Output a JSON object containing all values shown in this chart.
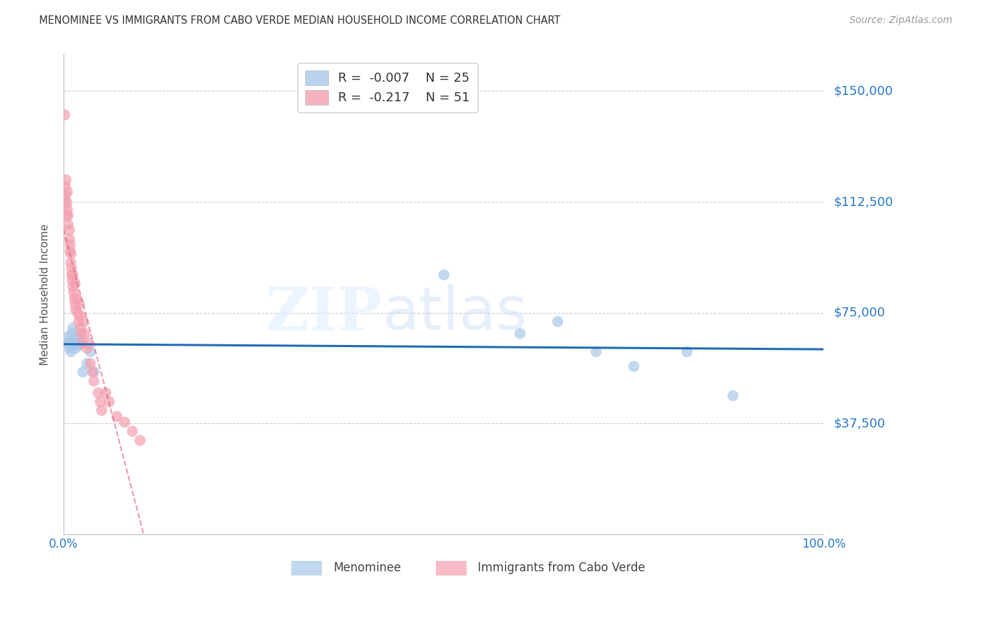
{
  "title": "MENOMINEE VS IMMIGRANTS FROM CABO VERDE MEDIAN HOUSEHOLD INCOME CORRELATION CHART",
  "source": "Source: ZipAtlas.com",
  "ylabel": "Median Household Income",
  "yticks": [
    0,
    37500,
    75000,
    112500,
    150000
  ],
  "ytick_labels": [
    "",
    "$37,500",
    "$75,000",
    "$112,500",
    "$150,000"
  ],
  "xlim": [
    0.0,
    1.0
  ],
  "ylim": [
    0,
    162500
  ],
  "legend1_r": "-0.007",
  "legend1_n": "25",
  "legend2_r": "-0.217",
  "legend2_n": "51",
  "legend_label1": "Menominee",
  "legend_label2": "Immigrants from Cabo Verde",
  "blue_color": "#a8c8e8",
  "pink_color": "#f4a0b0",
  "blue_line_color": "#1f6ab5",
  "pink_line_color": "#e05080",
  "menominee_x": [
    0.004,
    0.006,
    0.007,
    0.008,
    0.009,
    0.01,
    0.011,
    0.012,
    0.013,
    0.015,
    0.016,
    0.018,
    0.02,
    0.022,
    0.025,
    0.03,
    0.035,
    0.04,
    0.5,
    0.6,
    0.65,
    0.7,
    0.75,
    0.82,
    0.88
  ],
  "menominee_y": [
    65000,
    67000,
    63000,
    65000,
    62000,
    68000,
    64000,
    70000,
    66000,
    65000,
    63000,
    67000,
    64000,
    65000,
    55000,
    58000,
    62000,
    55000,
    88000,
    68000,
    72000,
    62000,
    57000,
    62000,
    47000
  ],
  "cabo_verde_x": [
    0.001,
    0.002,
    0.002,
    0.003,
    0.003,
    0.004,
    0.004,
    0.005,
    0.005,
    0.006,
    0.006,
    0.007,
    0.007,
    0.008,
    0.008,
    0.009,
    0.009,
    0.01,
    0.01,
    0.011,
    0.012,
    0.012,
    0.013,
    0.014,
    0.015,
    0.015,
    0.016,
    0.017,
    0.018,
    0.019,
    0.02,
    0.021,
    0.022,
    0.023,
    0.025,
    0.026,
    0.028,
    0.03,
    0.032,
    0.035,
    0.038,
    0.04,
    0.045,
    0.048,
    0.05,
    0.055,
    0.06,
    0.07,
    0.08,
    0.09,
    0.1
  ],
  "cabo_verde_y": [
    142000,
    118000,
    115000,
    120000,
    113000,
    112000,
    108000,
    116000,
    110000,
    105000,
    108000,
    100000,
    103000,
    98000,
    96000,
    95000,
    92000,
    90000,
    88000,
    86000,
    84000,
    88000,
    82000,
    80000,
    85000,
    78000,
    76000,
    80000,
    75000,
    72000,
    78000,
    74000,
    70000,
    68000,
    65000,
    72000,
    68000,
    63000,
    65000,
    58000,
    55000,
    52000,
    48000,
    45000,
    42000,
    48000,
    45000,
    40000,
    38000,
    35000,
    32000
  ],
  "background_color": "#ffffff",
  "grid_color": "#cccccc",
  "title_color": "#333333",
  "tick_label_color": "#2878c8"
}
